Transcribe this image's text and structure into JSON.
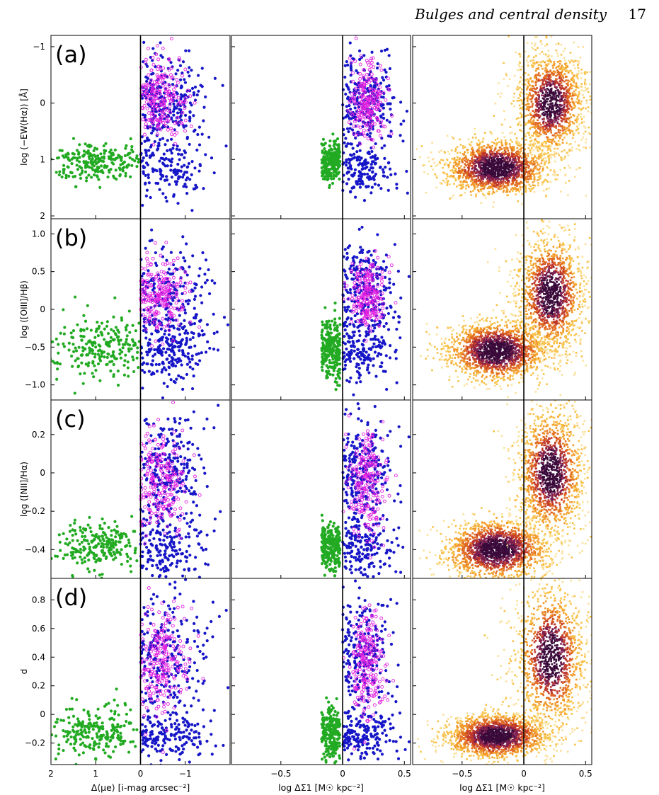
{
  "header": {
    "running_title": "Bulges and central density",
    "page_number": "17"
  },
  "colors": {
    "green": "#22aa22",
    "blue": "#1616c8",
    "magenta": "#e020e0"
  },
  "chart_data": {
    "type": "scatter",
    "rows": [
      {
        "panel_label": "(a)",
        "ylabel": "log (−EW(Hα)) [Å]",
        "ylim": [
          2.05,
          -1.2
        ],
        "inverted": true,
        "yticks": [
          -1,
          0,
          1,
          2
        ],
        "ytick_labels": [
          "−1",
          "0",
          "1",
          "2"
        ]
      },
      {
        "panel_label": "(b)",
        "ylabel": "log ([OIII]/Hβ)",
        "ylim": [
          -1.2,
          1.2
        ],
        "inverted": false,
        "yticks": [
          -1.0,
          -0.5,
          0,
          0.5,
          1.0
        ],
        "ytick_labels": [
          "−1.0",
          "−0.5",
          "0",
          "0.5",
          "1.0"
        ]
      },
      {
        "panel_label": "(c)",
        "ylabel": "log ([NII]/Hα)",
        "ylim": [
          -0.55,
          0.38
        ],
        "inverted": false,
        "yticks": [
          -0.4,
          -0.2,
          0,
          0.2
        ],
        "ytick_labels": [
          "−0.4",
          "−0.2",
          "0",
          "0.2"
        ]
      },
      {
        "panel_label": "(d)",
        "ylabel": "d",
        "ylim": [
          -0.35,
          0.95
        ],
        "inverted": false,
        "yticks": [
          -0.2,
          0,
          0.2,
          0.4,
          0.6,
          0.8
        ],
        "ytick_labels": [
          "−0.2",
          "0",
          "0.2",
          "0.4",
          "0.6",
          "0.8"
        ]
      }
    ],
    "columns": [
      {
        "xlabel": "Δ⟨μe⟩ [i-mag arcsec⁻²]",
        "xlim": [
          2,
          -2
        ],
        "inverted": true,
        "xticks": [
          2,
          1,
          0,
          -1
        ],
        "xtick_labels": [
          "2",
          "1",
          "0",
          "−1"
        ],
        "kind": "points"
      },
      {
        "xlabel": "log ΔΣ1 [M☉ kpc⁻²]",
        "xlim": [
          -0.9,
          0.55
        ],
        "inverted": false,
        "xticks": [
          -0.5,
          0,
          0.5
        ],
        "xtick_labels": [
          "−0.5",
          "0",
          "0.5"
        ],
        "kind": "points"
      },
      {
        "xlabel": "log ΔΣ1 [M☉ kpc⁻²]",
        "xlim": [
          -0.9,
          0.55
        ],
        "inverted": false,
        "xticks": [
          -0.5,
          0,
          0.5
        ],
        "xtick_labels": [
          "−0.5",
          "0",
          "0.5"
        ],
        "kind": "density"
      }
    ],
    "vertical_line_at": 0,
    "series": [
      {
        "marker": "filled",
        "color": "#22aa22",
        "description_key": "green"
      },
      {
        "marker": "filled",
        "color": "#1616c8",
        "description_key": "blue"
      },
      {
        "marker": "open",
        "color": "#e020e0",
        "description_key": "magenta"
      }
    ],
    "clusters": {
      "x_green_mu": [
        1.0,
        0.9
      ],
      "x_green_sig": [
        0.5,
        0.18
      ],
      "x_blue_mu": [
        -0.6,
        0.15
      ],
      "x_blue_sig": [
        0.45,
        0.14
      ],
      "x_mag_mu": [
        -0.45,
        0.2
      ],
      "x_mag_sig": [
        0.3,
        0.07
      ],
      "y_green": [
        [
          1.05,
          0.3
        ],
        [
          -0.5,
          0.35
        ],
        [
          -0.38,
          0.1
        ],
        [
          -0.12,
          0.15
        ]
      ],
      "y_blue_low": [
        [
          1.15,
          0.25
        ],
        [
          -0.55,
          0.2
        ],
        [
          -0.4,
          0.08
        ],
        [
          -0.15,
          0.08
        ]
      ],
      "y_blue_high": [
        [
          0.0,
          0.4
        ],
        [
          0.2,
          0.35
        ],
        [
          0.0,
          0.15
        ],
        [
          0.4,
          0.22
        ]
      ],
      "y_mag": [
        [
          -0.05,
          0.35
        ],
        [
          0.2,
          0.25
        ],
        [
          -0.05,
          0.13
        ],
        [
          0.35,
          0.2
        ]
      ]
    }
  }
}
